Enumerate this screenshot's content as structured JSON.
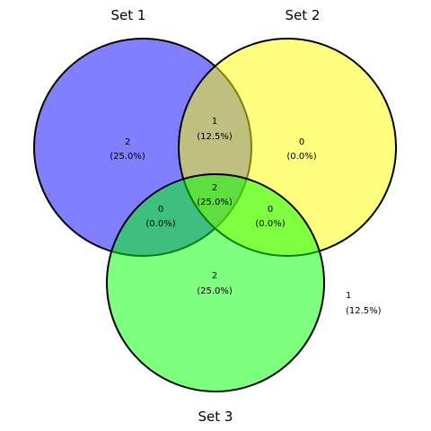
{
  "venn": {
    "sets": [
      {
        "name": "Set 1",
        "color": "#0000ff"
      },
      {
        "name": "Set 2",
        "color": "#ffff00"
      },
      {
        "name": "Set 3",
        "color": "#00ff00"
      }
    ],
    "regions": {
      "set1_only": {
        "count": "2",
        "percent": "(25.0%)"
      },
      "set2_only": {
        "count": "0",
        "percent": "(0.0%)"
      },
      "set3_only": {
        "count": "2",
        "percent": "(25.0%)"
      },
      "set1_set2": {
        "count": "1",
        "percent": "(12.5%)"
      },
      "set1_set3": {
        "count": "0",
        "percent": "(0.0%)"
      },
      "set2_set3": {
        "count": "0",
        "percent": "(0.0%)"
      },
      "all_three": {
        "count": "2",
        "percent": "(25.0%)"
      },
      "outside": {
        "count": "1",
        "percent": "(12.5%)"
      }
    }
  }
}
